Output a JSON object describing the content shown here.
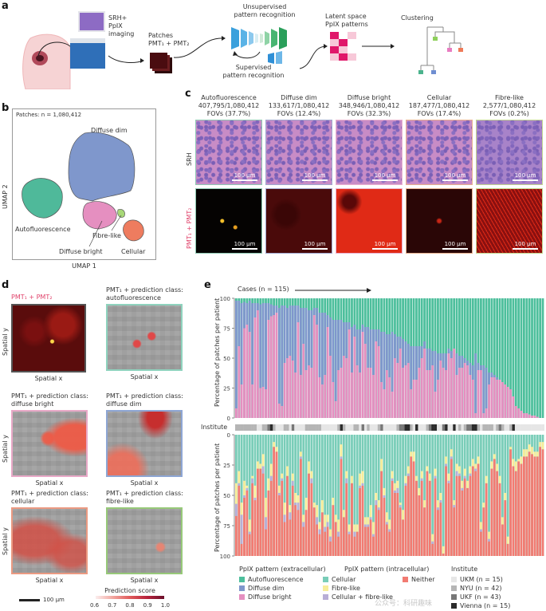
{
  "panel_a": {
    "label": "a",
    "srh_imaging": [
      "SRH+",
      "PpIX",
      "imaging"
    ],
    "patches": [
      "Patches",
      "PMT₁ + PMT₂"
    ],
    "unsupervised": [
      "Unsupervised",
      "pattern recognition"
    ],
    "supervised": [
      "Supervised",
      "pattern recognition"
    ],
    "latent": [
      "Latent space",
      "PpIX patterns"
    ],
    "clustering": "Clustering"
  },
  "panel_b": {
    "label": "b",
    "patches_n": "Patches: n = 1,080,412",
    "xlabel": "UMAP 1",
    "ylabel": "UMAP 2",
    "clusters": [
      {
        "name": "Diffuse dim",
        "color": "#7f97cc"
      },
      {
        "name": "Autofluorescence",
        "color": "#4fb99a"
      },
      {
        "name": "Diffuse bright",
        "color": "#e58fc0"
      },
      {
        "name": "Fibre-like",
        "color": "#a8d878"
      },
      {
        "name": "Cellular",
        "color": "#ee7c5f"
      }
    ]
  },
  "panel_c": {
    "label": "c",
    "row_srh": "SRH",
    "row_pmt": "PMT₁ + PMT₂",
    "scale": "100 µm",
    "columns": [
      {
        "name": "Autofluorescence",
        "count": "407,795/1,080,412",
        "pct": "FOVs (37.7%)",
        "border": "#8fc9b3"
      },
      {
        "name": "Diffuse dim",
        "count": "133,617/1,080,412",
        "pct": "FOVs (12.4%)",
        "border": "#a0a8cf"
      },
      {
        "name": "Diffuse bright",
        "count": "348,946/1,080,412",
        "pct": "FOVs (32.3%)",
        "border": "#e9b1cf"
      },
      {
        "name": "Cellular",
        "count": "187,477/1,080,412",
        "pct": "FOVs (17.4%)",
        "border": "#e7b08d"
      },
      {
        "name": "Fibre-like",
        "count": "2,577/1,080,412",
        "pct": "FOVs (0.2%)",
        "border": "#c2d68f"
      }
    ]
  },
  "panel_d": {
    "label": "d",
    "pmt_title": "PMT₁ + PMT₂",
    "spatial_x": "Spatial x",
    "spatial_y": "Spatial y",
    "maps": [
      {
        "title1": "PMT₁ + prediction class:",
        "title2": "autofluorescence",
        "border": "#8fd3be"
      },
      {
        "title1": "PMT₁ + prediction class:",
        "title2": "diffuse bright",
        "border": "#e9a9c8"
      },
      {
        "title1": "PMT₁ + prediction class:",
        "title2": "diffuse dim",
        "border": "#8ea6d4"
      },
      {
        "title1": "PMT₁ + prediction class:",
        "title2": "cellular",
        "border": "#eb9a82"
      },
      {
        "title1": "PMT₁ + prediction class:",
        "title2": "fibre-like",
        "border": "#97c979"
      }
    ],
    "scalebar": "100 µm",
    "colorbar_title": "Prediction score",
    "colorbar_ticks": [
      "0.6",
      "0.7",
      "0.8",
      "0.9",
      "1.0"
    ]
  },
  "chart_data": [
    {
      "type": "bar",
      "title": "Cases (n = 115)",
      "ylabel": "Percentage of patches per patient",
      "ylim": [
        0,
        100
      ],
      "yticks": [
        "100",
        "75",
        "50",
        "25",
        "0"
      ],
      "n_cases": 115,
      "stacked": true,
      "series_order": [
        "Diffuse bright",
        "Diffuse dim",
        "Autofluorescence"
      ],
      "colors": {
        "Diffuse bright": "#e58fc0",
        "Diffuse dim": "#7f97cc",
        "Autofluorescence": "#4dbf9c"
      },
      "series": [
        {
          "name": "Diffuse bright",
          "values": [
            8,
            60,
            28,
            75,
            78,
            72,
            28,
            84,
            90,
            25,
            26,
            24,
            82,
            85,
            86,
            88,
            12,
            10,
            46,
            50,
            52,
            48,
            38,
            80,
            36,
            62,
            40,
            44,
            42,
            86,
            78,
            34,
            28,
            36,
            76,
            52,
            30,
            14,
            40,
            42,
            52,
            50,
            74,
            38,
            68,
            44,
            38,
            72,
            62,
            42,
            42,
            36,
            64,
            60,
            30,
            24,
            40,
            34,
            22,
            50,
            46,
            58,
            42,
            44,
            46,
            24,
            32,
            32,
            42,
            50,
            58,
            40,
            40,
            44,
            22,
            32,
            48,
            42,
            40,
            54,
            50,
            58,
            36,
            42,
            42,
            46,
            44,
            36,
            32,
            4,
            40,
            40,
            4,
            8,
            28,
            34,
            34,
            32,
            32,
            30,
            28,
            26,
            24,
            18,
            10,
            8,
            6,
            4,
            4,
            3,
            2,
            2,
            1,
            0,
            0
          ]
        },
        {
          "name": "Diffuse dim",
          "values": [
            90,
            38,
            68,
            22,
            18,
            26,
            68,
            12,
            6,
            70,
            70,
            72,
            14,
            10,
            8,
            6,
            80,
            84,
            48,
            42,
            42,
            46,
            56,
            14,
            56,
            30,
            52,
            46,
            48,
            6,
            14,
            54,
            60,
            52,
            10,
            32,
            52,
            68,
            42,
            40,
            28,
            30,
            6,
            38,
            10,
            30,
            36,
            6,
            14,
            34,
            32,
            38,
            10,
            14,
            42,
            48,
            30,
            36,
            50,
            20,
            22,
            10,
            24,
            20,
            16,
            36,
            28,
            28,
            18,
            10,
            6,
            18,
            18,
            12,
            34,
            22,
            6,
            12,
            14,
            4,
            6,
            0,
            18,
            10,
            10,
            4,
            4,
            10,
            12,
            50,
            6,
            4,
            40,
            34,
            10,
            4,
            2,
            2,
            0,
            0,
            0,
            0,
            0,
            0,
            0,
            0,
            0,
            0,
            0,
            0,
            0,
            0,
            0,
            0,
            0
          ]
        }
      ]
    },
    {
      "type": "bar",
      "ylabel": "Percentage of patches per patient",
      "ylim": [
        0,
        100
      ],
      "yticks": [
        "0",
        "25",
        "50",
        "75",
        "100"
      ],
      "n_cases": 115,
      "stacked": true,
      "series_order": [
        "Neither",
        "Cellular + fibre-like",
        "Fibre-like",
        "Cellular"
      ],
      "colors": {
        "Neither": "#f27b72",
        "Cellular + fibre-like": "#b8aed6",
        "Fibre-like": "#f7ed9a",
        "Cellular": "#79cdb8"
      },
      "series": [
        {
          "name": "Neither",
          "values": [
            33,
            58,
            10,
            48,
            54,
            18,
            60,
            46,
            72,
            72,
            68,
            22,
            54,
            62,
            90,
            86,
            50,
            62,
            28,
            66,
            30,
            58,
            42,
            38,
            80,
            24,
            38,
            68,
            60,
            40,
            26,
            18,
            36,
            20,
            24,
            12,
            42,
            28,
            16,
            80,
            32,
            60,
            18,
            60,
            16,
            20,
            56,
            58,
            24,
            24,
            30,
            16,
            42,
            38,
            70,
            48,
            26,
            20,
            62,
            52,
            52,
            40,
            30,
            58,
            66,
            82,
            78,
            62,
            50,
            62,
            40,
            70,
            62,
            10,
            64,
            38,
            44,
            2,
            74,
            60,
            80,
            40,
            66,
            66,
            54,
            64,
            56,
            66,
            74,
            70,
            76,
            20,
            40,
            60,
            12,
            72,
            80,
            70,
            60,
            26,
            46,
            10,
            88,
            74,
            70,
            78,
            76,
            82,
            82,
            86,
            84,
            82,
            82,
            90,
            88
          ]
        },
        {
          "name": "Cellular + fibre-like",
          "values": [
            10,
            2,
            24,
            2,
            2,
            2,
            4,
            2,
            0,
            0,
            6,
            10,
            0,
            4,
            0,
            0,
            2,
            2,
            6,
            0,
            6,
            4,
            2,
            6,
            2,
            4,
            0,
            0,
            4,
            0,
            6,
            4,
            0,
            4,
            4,
            4,
            0,
            0,
            4,
            2,
            0,
            4,
            2,
            0,
            4,
            0,
            2,
            2,
            2,
            2,
            2,
            2,
            4,
            2,
            0,
            2,
            2,
            2,
            2,
            2,
            4,
            2,
            0,
            2,
            2,
            0,
            0,
            0,
            0,
            2,
            0,
            0,
            0,
            2,
            2,
            2,
            2,
            0,
            2,
            2,
            2,
            2,
            4,
            2,
            2,
            2,
            0,
            2,
            0,
            2,
            0,
            2,
            0,
            0,
            2,
            0,
            0,
            0,
            0,
            0,
            0,
            0,
            0,
            0,
            0,
            0,
            0,
            0,
            0,
            0,
            0,
            0,
            0,
            0,
            0
          ]
        },
        {
          "name": "Fibre-like",
          "values": [
            17,
            10,
            10,
            12,
            2,
            10,
            2,
            10,
            6,
            4,
            10,
            16,
            10,
            10,
            4,
            4,
            6,
            4,
            10,
            8,
            6,
            6,
            8,
            6,
            4,
            6,
            10,
            10,
            6,
            4,
            10,
            6,
            10,
            10,
            6,
            6,
            6,
            6,
            10,
            10,
            6,
            6,
            6,
            6,
            6,
            6,
            10,
            10,
            6,
            6,
            10,
            10,
            6,
            6,
            10,
            6,
            8,
            8,
            6,
            6,
            6,
            2,
            8,
            6,
            6,
            4,
            8,
            4,
            6,
            6,
            6,
            4,
            6,
            6,
            6,
            6,
            6,
            6,
            6,
            6,
            6,
            4,
            6,
            6,
            6,
            6,
            6,
            6,
            6,
            4,
            6,
            6,
            4,
            6,
            6,
            6,
            4,
            6,
            6,
            6,
            6,
            6,
            2,
            6,
            8,
            2,
            6,
            6,
            6,
            6,
            6,
            4,
            4,
            4,
            6
          ]
        }
      ]
    }
  ],
  "panel_e": {
    "label": "e",
    "cases": "Cases (n = 115)",
    "institute_label": "Institute",
    "ylabel": "Percentage of patches per patient",
    "legend": {
      "extracellular_title": "PpIX pattern (extracellular)",
      "intracellular_title": "PpIX pattern (intracellular)",
      "institute_title": "Institute",
      "extracellular": [
        {
          "name": "Autofluorescence",
          "color": "#4dbf9c"
        },
        {
          "name": "Diffuse dim",
          "color": "#7f97cc"
        },
        {
          "name": "Diffuse bright",
          "color": "#e58fc0"
        }
      ],
      "intracellular": [
        {
          "name": "Cellular",
          "color": "#79cdb8"
        },
        {
          "name": "Fibre-like",
          "color": "#f7ed9a"
        },
        {
          "name": "Cellular + fibre-like",
          "color": "#b8aed6"
        },
        {
          "name": "Neither",
          "color": "#f27b72"
        }
      ],
      "institutes": [
        {
          "name": "UKM (n = 15)",
          "color": "#e6e6e6"
        },
        {
          "name": "NYU (n = 42)",
          "color": "#b5b5b5"
        },
        {
          "name": "UKF (n = 43)",
          "color": "#777777"
        },
        {
          "name": "Vienna (n = 15)",
          "color": "#2b2b2b"
        }
      ]
    },
    "institute_strip": [
      1,
      1,
      1,
      1,
      1,
      1,
      1,
      1,
      0,
      0,
      1,
      1,
      2,
      3,
      1,
      0,
      0,
      0,
      1,
      1,
      0,
      2,
      0,
      0,
      0,
      0,
      1,
      1,
      1,
      1,
      1,
      1,
      0,
      0,
      0,
      0,
      0,
      0,
      1,
      3,
      1,
      0,
      0,
      0,
      1,
      1,
      0,
      2,
      0,
      1,
      0,
      0,
      0,
      1,
      2,
      0,
      0,
      0,
      0,
      0,
      1,
      2,
      2,
      3,
      3,
      1,
      0,
      3,
      0,
      0,
      0,
      1,
      2,
      3,
      3,
      0,
      0,
      2,
      3,
      0,
      0,
      3,
      0,
      1,
      0,
      1,
      2,
      2,
      3,
      3,
      1,
      0,
      1,
      1,
      1,
      1,
      0,
      1,
      2,
      1,
      0,
      0,
      1,
      3,
      0,
      0,
      0,
      0,
      0,
      0,
      0,
      0,
      0,
      0,
      0
    ],
    "watermark": "公众号：科研趣味"
  }
}
